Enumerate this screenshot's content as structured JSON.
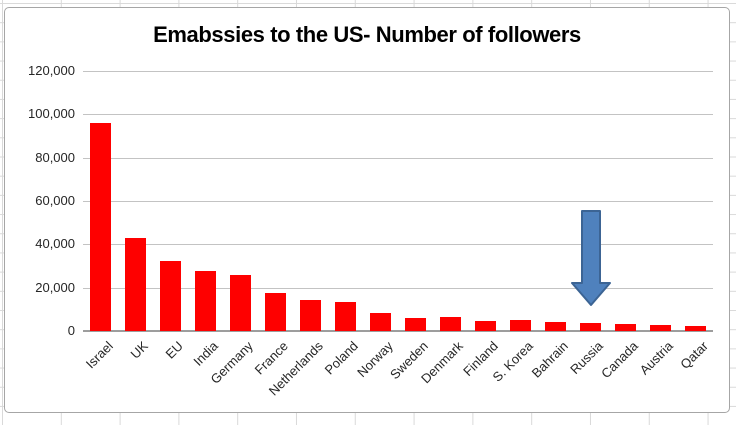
{
  "chart_data": {
    "type": "bar",
    "title": "Emabssies to the US- Number of followers",
    "categories": [
      "Israel",
      "UK",
      "EU",
      "India",
      "Germany",
      "France",
      "Netherlands",
      "Poland",
      "Norway",
      "Sweden",
      "Denmark",
      "Finland",
      "S. Korea",
      "Bahrain",
      "Russia",
      "Canada",
      "Austria",
      "Qatar"
    ],
    "values": [
      96000,
      43000,
      32500,
      27500,
      26000,
      17500,
      14500,
      13500,
      8500,
      6000,
      6500,
      4500,
      5000,
      4000,
      3500,
      3200,
      2800,
      2200
    ],
    "title_position": "top-center",
    "xlabel": "",
    "ylabel": "",
    "ylim": [
      0,
      120000
    ],
    "ytick_labels": [
      "0",
      "20,000",
      "40,000",
      "60,000",
      "80,000",
      "100,000",
      "120,000"
    ],
    "grid": "horizontal",
    "legend": "none",
    "bar_color": "#fe0000",
    "gridline_color": "#c3c3c3",
    "axis_line_color": "#9d9d9d",
    "annotation": {
      "shape": "block-arrow-down",
      "target_category": "Russia",
      "fill": "#4f81bd",
      "border": "#3c6494"
    }
  }
}
